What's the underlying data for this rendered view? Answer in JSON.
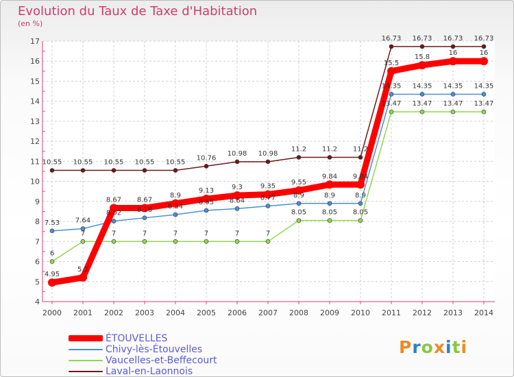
{
  "chart_data": {
    "type": "line",
    "title": "Evolution du Taux de Taxe d'Habitation",
    "ylabel": "(en %)",
    "xlabel": "",
    "ylim": [
      4,
      17
    ],
    "yticks": [
      4,
      5,
      6,
      7,
      8,
      9,
      10,
      11,
      12,
      13,
      14,
      15,
      16,
      17
    ],
    "categories": [
      "2000",
      "2001",
      "2002",
      "2003",
      "2004",
      "2005",
      "2006",
      "2007",
      "2008",
      "2009",
      "2010",
      "2011",
      "2012",
      "2013",
      "2014"
    ],
    "series": [
      {
        "name": "Laval-en-Laonnois",
        "color": "#6b1a1a",
        "values": [
          10.55,
          10.55,
          10.55,
          10.55,
          10.55,
          10.76,
          10.98,
          10.98,
          11.2,
          11.2,
          11.2,
          16.73,
          16.73,
          16.73,
          16.73
        ],
        "labels": [
          "10.55",
          "10.55",
          "10.55",
          "10.55",
          "10.55",
          "10.76",
          "10.98",
          "10.98",
          "11.2",
          "11.2",
          "11.2",
          "16.73",
          "16.73",
          "16.73",
          "16.73"
        ]
      },
      {
        "name": "Chivy-lès-Étouvelles",
        "color": "#4a8fd2",
        "values": [
          7.53,
          7.64,
          8.02,
          8.18,
          8.34,
          8.55,
          8.64,
          8.77,
          8.9,
          8.9,
          8.9,
          14.35,
          14.35,
          14.35,
          14.35
        ],
        "labels": [
          "7.53",
          "7.64",
          "8.02",
          "8.18",
          "8.34",
          "8.55",
          "8.64",
          "8.77",
          "8.9",
          "8.9",
          "8.9",
          "14.35",
          "14.35",
          "14.35",
          "14.35"
        ]
      },
      {
        "name": "Vaucelles-et-Beffecourt",
        "color": "#8ed84f",
        "values": [
          6,
          7,
          7,
          7,
          7,
          7,
          7,
          7,
          8.05,
          8.05,
          8.05,
          13.47,
          13.47,
          13.47,
          13.47
        ],
        "labels": [
          "6",
          "7",
          "7",
          "7",
          "7",
          "7",
          "7",
          "7",
          "8.05",
          "8.05",
          "8.05",
          "13.47",
          "13.47",
          "13.47",
          "13.47"
        ]
      },
      {
        "name": "ÉTOUVELLES",
        "color": "#ff0000",
        "values": [
          4.95,
          5.2,
          8.67,
          8.67,
          8.9,
          9.13,
          9.3,
          9.35,
          9.55,
          9.84,
          9.84,
          15.5,
          15.8,
          16,
          16
        ],
        "labels": [
          "4.95",
          "5.2",
          "8.67",
          "8.67",
          "8.9",
          "9.13",
          "9.3",
          "9.35",
          "9.55",
          "9.84",
          "9.84",
          "15.5",
          "15.8",
          "16",
          "16"
        ]
      }
    ],
    "legend": [
      {
        "name": "ÉTOUVELLES",
        "color": "#ff0000"
      },
      {
        "name": "Chivy-lès-Étouvelles",
        "color": "#4a8fd2"
      },
      {
        "name": "Vaucelles-et-Beffecourt",
        "color": "#8ed84f"
      },
      {
        "name": "Laval-en-Laonnois",
        "color": "#6b1a1a"
      }
    ],
    "legend_position": "bottom-left",
    "grid": true
  },
  "brand": {
    "text": "Proxiti",
    "colors": [
      "#f08a24",
      "#2f7fc9",
      "#8dc63f",
      "#f08a24",
      "#2f7fc9",
      "#8dc63f",
      "#f08a24"
    ]
  }
}
